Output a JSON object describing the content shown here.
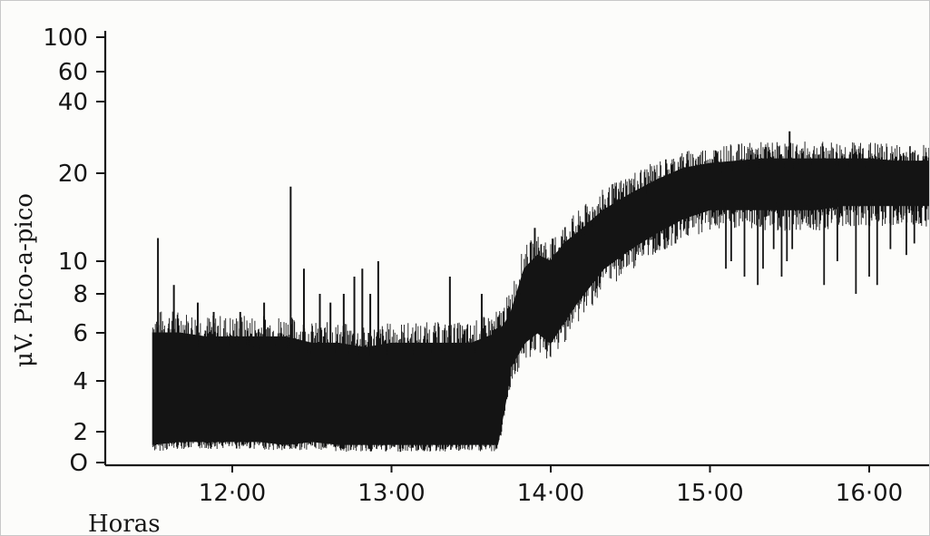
{
  "chart_data": {
    "type": "line",
    "title": "",
    "xlabel": "Horas",
    "ylabel": "μV. Pico-a-pico",
    "y_scale": "log",
    "ylim": [
      1,
      100
    ],
    "xlim": [
      "11:25",
      "16:40"
    ],
    "x_ticks": [
      {
        "t": "12:00",
        "label": "12·00"
      },
      {
        "t": "13:00",
        "label": "13·00"
      },
      {
        "t": "14:00",
        "label": "14·00"
      },
      {
        "t": "15:00",
        "label": "15·00"
      },
      {
        "t": "16:00",
        "label": "16·00"
      }
    ],
    "y_ticks": [
      {
        "v": 100,
        "label": "100"
      },
      {
        "v": 60,
        "label": "60"
      },
      {
        "v": 40,
        "label": "40"
      },
      {
        "v": 20,
        "label": "20"
      },
      {
        "v": 10,
        "label": "10"
      },
      {
        "v": 8,
        "label": "8"
      },
      {
        "v": 6,
        "label": "6"
      },
      {
        "v": 4,
        "label": "4"
      },
      {
        "v": 2,
        "label": "2"
      },
      {
        "v": 1,
        "label": "O"
      }
    ],
    "grid": false,
    "legend": "none",
    "series_color": "#141414",
    "series": [
      {
        "columns": [
          "time",
          "min_uV",
          "max_uV"
        ],
        "values": [
          [
            "11:30",
            1.5,
            6.0
          ],
          [
            "11:40",
            1.6,
            6.0
          ],
          [
            "11:50",
            1.6,
            5.8
          ],
          [
            "12:00",
            1.6,
            5.8
          ],
          [
            "12:10",
            1.6,
            5.8
          ],
          [
            "12:20",
            1.5,
            5.8
          ],
          [
            "12:30",
            1.6,
            5.5
          ],
          [
            "12:40",
            1.5,
            5.5
          ],
          [
            "12:50",
            1.5,
            5.3
          ],
          [
            "13:00",
            1.5,
            5.5
          ],
          [
            "13:10",
            1.5,
            5.5
          ],
          [
            "13:20",
            1.5,
            5.5
          ],
          [
            "13:30",
            1.5,
            5.5
          ],
          [
            "13:40",
            1.5,
            6.0
          ],
          [
            "13:43",
            3.0,
            6.5
          ],
          [
            "13:45",
            4.5,
            7.0
          ],
          [
            "13:50",
            5.5,
            9.5
          ],
          [
            "13:55",
            6.0,
            10.5
          ],
          [
            "14:00",
            5.5,
            10.0
          ],
          [
            "14:05",
            6.5,
            11.5
          ],
          [
            "14:10",
            7.5,
            12.5
          ],
          [
            "14:20",
            9.5,
            15.0
          ],
          [
            "14:30",
            11.0,
            17.0
          ],
          [
            "14:40",
            12.5,
            19.0
          ],
          [
            "14:50",
            14.0,
            21.0
          ],
          [
            "15:00",
            15.0,
            22.0
          ],
          [
            "15:10",
            15.0,
            22.5
          ],
          [
            "15:20",
            15.0,
            23.0
          ],
          [
            "15:30",
            15.0,
            23.0
          ],
          [
            "15:40",
            15.0,
            23.0
          ],
          [
            "15:50",
            15.5,
            23.0
          ],
          [
            "16:00",
            15.5,
            23.0
          ],
          [
            "16:10",
            15.5,
            22.5
          ],
          [
            "16:20",
            15.5,
            22.5
          ],
          [
            "16:30",
            15.5,
            22.5
          ],
          [
            "16:38",
            15.5,
            22.5
          ]
        ]
      }
    ],
    "spikes_up": [
      [
        "11:32",
        12.0
      ],
      [
        "11:38",
        8.5
      ],
      [
        "11:47",
        7.5
      ],
      [
        "11:53",
        7.0
      ],
      [
        "12:03",
        7.0
      ],
      [
        "12:12",
        7.5
      ],
      [
        "12:22",
        18.0
      ],
      [
        "12:27",
        9.5
      ],
      [
        "12:33",
        8.0
      ],
      [
        "12:37",
        7.5
      ],
      [
        "12:42",
        8.0
      ],
      [
        "12:46",
        9.0
      ],
      [
        "12:49",
        9.5
      ],
      [
        "12:52",
        8.0
      ],
      [
        "12:55",
        10.0
      ],
      [
        "13:22",
        9.0
      ],
      [
        "13:34",
        8.0
      ],
      [
        "13:54",
        13.0
      ],
      [
        "15:30",
        30.0
      ]
    ],
    "dips": [
      [
        "14:43",
        11.0
      ],
      [
        "14:47",
        11.5
      ],
      [
        "15:06",
        9.5
      ],
      [
        "15:08",
        10.0
      ],
      [
        "15:13",
        9.0
      ],
      [
        "15:18",
        8.5
      ],
      [
        "15:20",
        9.5
      ],
      [
        "15:24",
        11.0
      ],
      [
        "15:27",
        9.0
      ],
      [
        "15:29",
        10.0
      ],
      [
        "15:31",
        11.0
      ],
      [
        "15:43",
        8.5
      ],
      [
        "15:48",
        10.0
      ],
      [
        "15:55",
        8.0
      ],
      [
        "16:00",
        9.0
      ],
      [
        "16:03",
        8.5
      ],
      [
        "16:08",
        11.0
      ],
      [
        "16:14",
        10.5
      ],
      [
        "16:17",
        11.5
      ],
      [
        "16:28",
        8.5
      ],
      [
        "16:32",
        12.0
      ]
    ]
  }
}
